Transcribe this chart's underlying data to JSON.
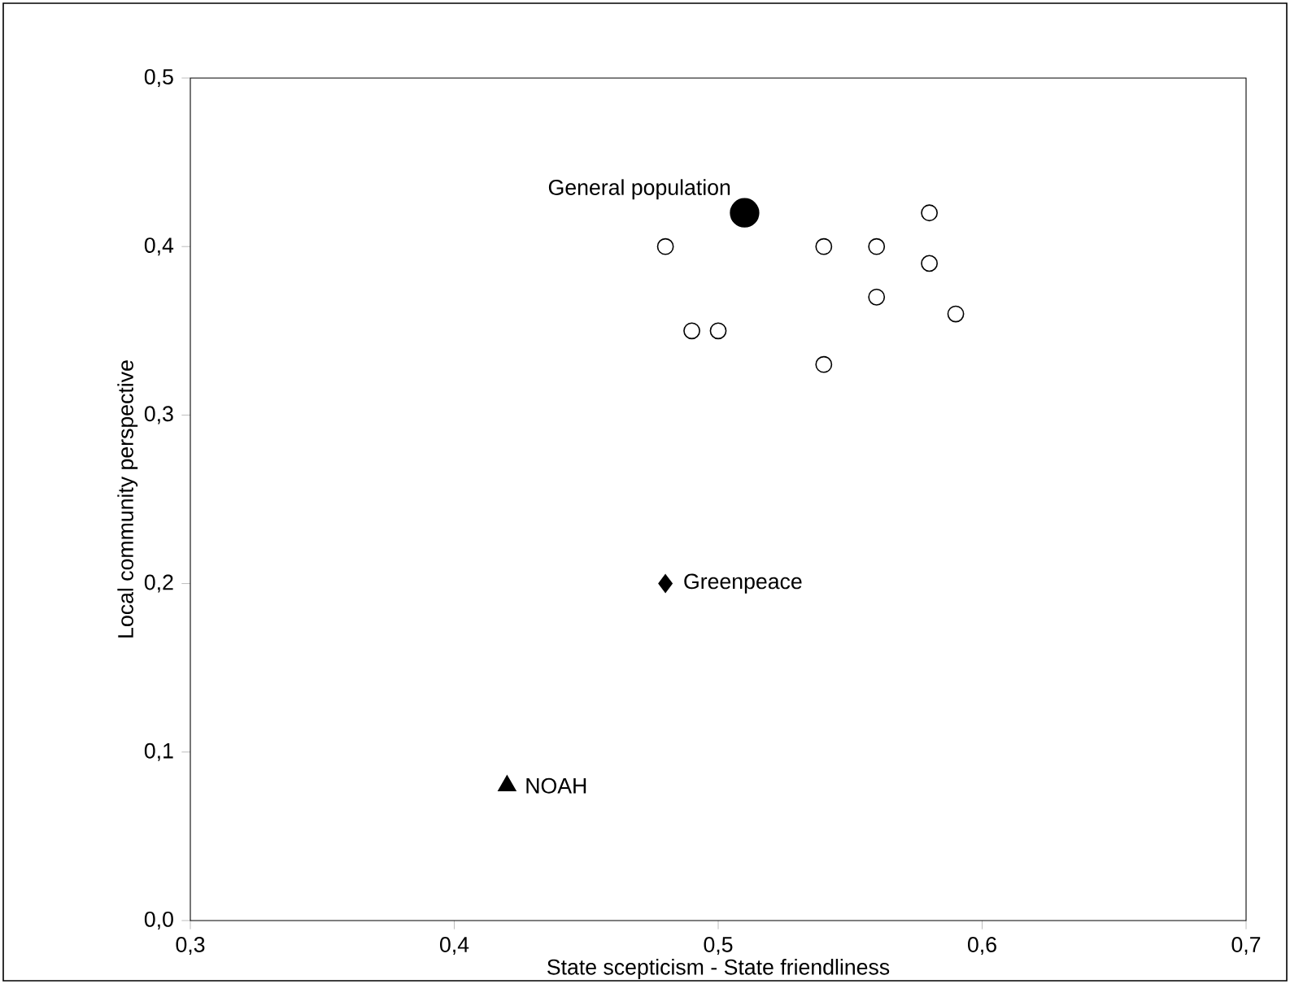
{
  "chart_data": {
    "type": "scatter",
    "xlabel": "State scepticism   -   State friendliness",
    "ylabel": "Local community perspective",
    "xlim": [
      0.3,
      0.7
    ],
    "ylim": [
      0,
      0.5
    ],
    "xticks": [
      {
        "value": 0.3,
        "label": "0,3"
      },
      {
        "value": 0.4,
        "label": "0,4"
      },
      {
        "value": 0.5,
        "label": "0,5"
      },
      {
        "value": 0.6,
        "label": "0,6"
      },
      {
        "value": 0.7,
        "label": "0,7"
      }
    ],
    "yticks": [
      {
        "value": 0,
        "label": "0,0"
      },
      {
        "value": 0.1,
        "label": "0,1"
      },
      {
        "value": 0.2,
        "label": "0,2"
      },
      {
        "value": 0.3,
        "label": "0,3"
      },
      {
        "value": 0.4,
        "label": "0,4"
      },
      {
        "value": 0.5,
        "label": "0,5"
      }
    ],
    "grid": false,
    "series": [
      {
        "color": "#000000",
        "marker": "circle",
        "x": [
          0.48,
          0.49,
          0.5,
          0.54,
          0.54,
          0.56,
          0.56,
          0.58,
          0.58,
          0.59
        ],
        "values": [
          0.4,
          0.35,
          0.35,
          0.4,
          0.33,
          0.4,
          0.37,
          0.42,
          0.39,
          0.36
        ]
      },
      {
        "name": "General population",
        "color": "#000000",
        "marker": "circle",
        "x": [
          0.51
        ],
        "values": [
          0.42
        ]
      },
      {
        "name": "Greenpeace",
        "color": "#000000",
        "marker": "diamond",
        "x": [
          0.48
        ],
        "values": [
          0.2
        ]
      },
      {
        "name": "NOAH",
        "color": "#000000",
        "marker": "triangle",
        "x": [
          0.42
        ],
        "values": [
          0.08
        ]
      }
    ]
  }
}
